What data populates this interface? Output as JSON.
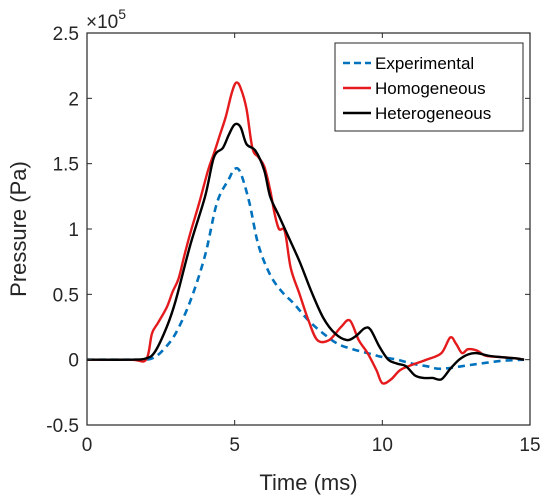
{
  "chart_data": {
    "type": "line",
    "xlabel": "Time (ms)",
    "ylabel": "Pressure (Pa)",
    "xlim": [
      0,
      15
    ],
    "ylim": [
      -0.5,
      2.5
    ],
    "y_multiplier_label": "×10",
    "y_multiplier_exponent": "5",
    "xticks": [
      0,
      5,
      10,
      15
    ],
    "xtick_labels": [
      "0",
      "5",
      "10",
      "15"
    ],
    "yticks": [
      -0.5,
      0,
      0.5,
      1,
      1.5,
      2,
      2.5
    ],
    "ytick_labels": [
      "-0.5",
      "0",
      "0.5",
      "1",
      "1.5",
      "2",
      "2.5"
    ],
    "grid": false,
    "legend_position": "top-right",
    "series": [
      {
        "name": "Experimental",
        "color": "#0072BD",
        "style": "dashed",
        "x": [
          0,
          1.5,
          2.0,
          2.3,
          2.6,
          3.0,
          3.5,
          4.0,
          4.4,
          4.8,
          5.0,
          5.2,
          5.5,
          5.8,
          6.2,
          6.6,
          7.0,
          7.5,
          8.0,
          8.5,
          9.0,
          9.5,
          10.0,
          10.5,
          11.0,
          11.5,
          12.0,
          13.0,
          14.0,
          14.8
        ],
        "y": [
          0,
          0,
          0.0,
          0.02,
          0.08,
          0.2,
          0.45,
          0.8,
          1.2,
          1.38,
          1.46,
          1.43,
          1.2,
          0.88,
          0.65,
          0.52,
          0.43,
          0.3,
          0.2,
          0.12,
          0.08,
          0.05,
          0.02,
          0.0,
          -0.03,
          -0.05,
          -0.07,
          -0.04,
          -0.01,
          0.0
        ]
      },
      {
        "name": "Homogeneous",
        "color": "#E41A1C",
        "style": "solid",
        "x": [
          0,
          1.5,
          2.0,
          2.2,
          2.4,
          2.7,
          2.9,
          3.1,
          3.3,
          3.5,
          3.8,
          4.1,
          4.3,
          4.5,
          4.7,
          4.9,
          5.05,
          5.2,
          5.4,
          5.6,
          5.8,
          6.0,
          6.2,
          6.35,
          6.5,
          6.7,
          6.9,
          7.2,
          7.5,
          7.8,
          8.2,
          8.6,
          8.9,
          9.2,
          9.5,
          9.8,
          10.0,
          10.3,
          10.6,
          11.0,
          11.5,
          12.0,
          12.3,
          12.5,
          12.7,
          12.9,
          13.2,
          13.5,
          14.0,
          14.5,
          14.8
        ],
        "y": [
          0,
          0,
          0.0,
          0.2,
          0.28,
          0.4,
          0.52,
          0.62,
          0.8,
          0.97,
          1.2,
          1.45,
          1.58,
          1.72,
          1.86,
          2.04,
          2.12,
          2.08,
          1.92,
          1.62,
          1.55,
          1.48,
          1.3,
          1.12,
          1.0,
          0.98,
          0.7,
          0.5,
          0.3,
          0.15,
          0.15,
          0.25,
          0.3,
          0.15,
          0.05,
          -0.08,
          -0.18,
          -0.15,
          -0.08,
          -0.04,
          0.0,
          0.05,
          0.17,
          0.12,
          0.05,
          0.08,
          0.07,
          0.03,
          0.02,
          0.01,
          0.0
        ]
      },
      {
        "name": "Heterogeneous",
        "color": "#000000",
        "style": "solid",
        "x": [
          0,
          1.5,
          2.0,
          2.3,
          2.7,
          3.0,
          3.5,
          4.0,
          4.3,
          4.6,
          4.8,
          5.0,
          5.2,
          5.4,
          5.7,
          6.0,
          6.2,
          6.5,
          6.8,
          7.2,
          7.6,
          8.0,
          8.4,
          8.8,
          9.1,
          9.4,
          9.6,
          9.9,
          10.2,
          10.5,
          10.8,
          11.1,
          11.4,
          11.7,
          12.0,
          12.3,
          12.6,
          12.9,
          13.2,
          13.6,
          14.0,
          14.5,
          14.8
        ],
        "y": [
          0,
          0,
          0.01,
          0.06,
          0.25,
          0.45,
          0.88,
          1.25,
          1.55,
          1.62,
          1.72,
          1.8,
          1.78,
          1.65,
          1.6,
          1.45,
          1.25,
          1.1,
          0.95,
          0.75,
          0.52,
          0.32,
          0.2,
          0.15,
          0.18,
          0.24,
          0.23,
          0.1,
          0.0,
          -0.03,
          -0.05,
          -0.12,
          -0.14,
          -0.14,
          -0.15,
          -0.07,
          0.0,
          0.04,
          0.05,
          0.03,
          0.02,
          0.01,
          0.0
        ]
      }
    ]
  }
}
